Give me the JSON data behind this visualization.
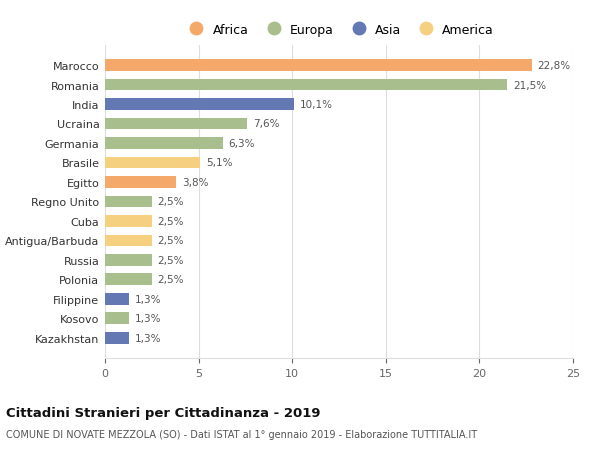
{
  "categories": [
    "Marocco",
    "Romania",
    "India",
    "Ucraina",
    "Germania",
    "Brasile",
    "Egitto",
    "Regno Unito",
    "Cuba",
    "Antigua/Barbuda",
    "Russia",
    "Polonia",
    "Filippine",
    "Kosovo",
    "Kazakhstan"
  ],
  "values": [
    22.8,
    21.5,
    10.1,
    7.6,
    6.3,
    5.1,
    3.8,
    2.5,
    2.5,
    2.5,
    2.5,
    2.5,
    1.3,
    1.3,
    1.3
  ],
  "labels": [
    "22,8%",
    "21,5%",
    "10,1%",
    "7,6%",
    "6,3%",
    "5,1%",
    "3,8%",
    "2,5%",
    "2,5%",
    "2,5%",
    "2,5%",
    "2,5%",
    "1,3%",
    "1,3%",
    "1,3%"
  ],
  "continents": [
    "Africa",
    "Europa",
    "Asia",
    "Europa",
    "Europa",
    "America",
    "Africa",
    "Europa",
    "America",
    "America",
    "Europa",
    "Europa",
    "Asia",
    "Europa",
    "Asia"
  ],
  "colors": {
    "Africa": "#F4A96A",
    "Europa": "#A8BE8C",
    "Asia": "#6478B4",
    "America": "#F5D080"
  },
  "title": "Cittadini Stranieri per Cittadinanza - 2019",
  "subtitle": "COMUNE DI NOVATE MEZZOLA (SO) - Dati ISTAT al 1° gennaio 2019 - Elaborazione TUTTITALIA.IT",
  "xlim": [
    0,
    25
  ],
  "xticks": [
    0,
    5,
    10,
    15,
    20,
    25
  ],
  "background_color": "#ffffff",
  "grid_color": "#dddddd",
  "legend_order": [
    "Africa",
    "Europa",
    "Asia",
    "America"
  ]
}
